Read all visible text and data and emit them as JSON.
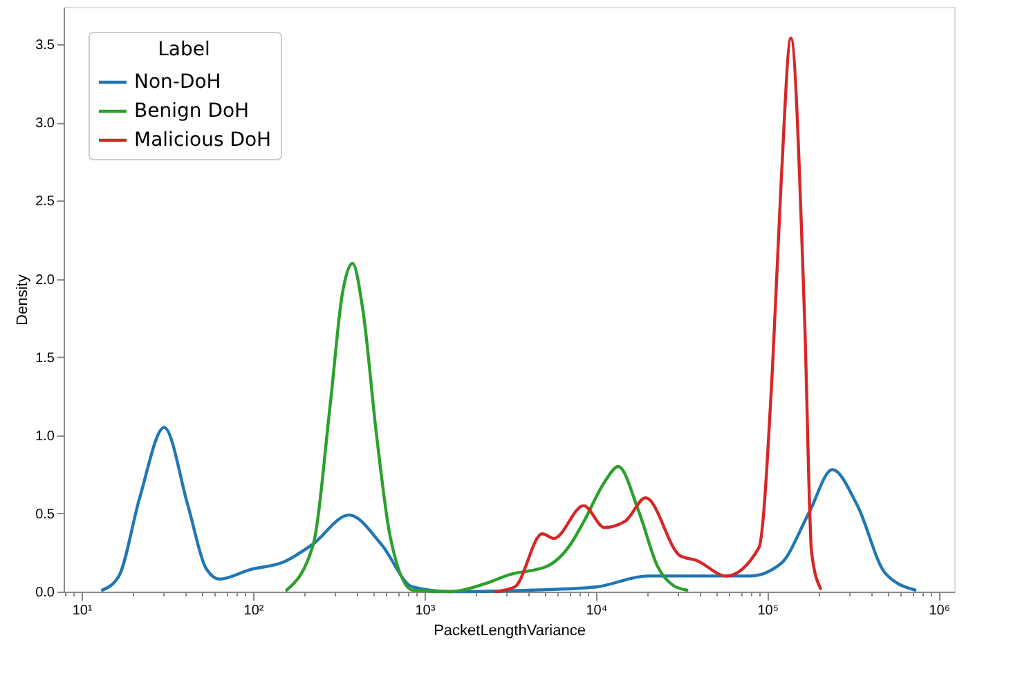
{
  "chart_data": {
    "type": "line",
    "xlabel": "PacketLengthVariance",
    "ylabel": "Density",
    "legend_title": "Label",
    "log": "x",
    "grid": false,
    "legend": "top left",
    "marker": "none",
    "line_style": "solid",
    "xlim": [
      7.85,
      1230000
    ],
    "ylim": [
      0,
      3.74
    ],
    "xticks": [
      {
        "value": 8,
        "label": null
      },
      {
        "value": 9,
        "label": null
      },
      {
        "value": 10,
        "label": "10¹"
      },
      {
        "value": 20,
        "label": null
      },
      {
        "value": 30,
        "label": null
      },
      {
        "value": 40,
        "label": null
      },
      {
        "value": 50,
        "label": null
      },
      {
        "value": 60,
        "label": null
      },
      {
        "value": 70,
        "label": null
      },
      {
        "value": 80,
        "label": null
      },
      {
        "value": 90,
        "label": null
      },
      {
        "value": 100,
        "label": "10²"
      },
      {
        "value": 200,
        "label": null
      },
      {
        "value": 300,
        "label": null
      },
      {
        "value": 400,
        "label": null
      },
      {
        "value": 500,
        "label": null
      },
      {
        "value": 600,
        "label": null
      },
      {
        "value": 700,
        "label": null
      },
      {
        "value": 800,
        "label": null
      },
      {
        "value": 900,
        "label": null
      },
      {
        "value": 1000,
        "label": "10³"
      },
      {
        "value": 2000,
        "label": null
      },
      {
        "value": 3000,
        "label": null
      },
      {
        "value": 4000,
        "label": null
      },
      {
        "value": 5000,
        "label": null
      },
      {
        "value": 6000,
        "label": null
      },
      {
        "value": 7000,
        "label": null
      },
      {
        "value": 8000,
        "label": null
      },
      {
        "value": 9000,
        "label": null
      },
      {
        "value": 10000,
        "label": "10⁴"
      },
      {
        "value": 20000,
        "label": null
      },
      {
        "value": 30000,
        "label": null
      },
      {
        "value": 40000,
        "label": null
      },
      {
        "value": 50000,
        "label": null
      },
      {
        "value": 60000,
        "label": null
      },
      {
        "value": 70000,
        "label": null
      },
      {
        "value": 80000,
        "label": null
      },
      {
        "value": 90000,
        "label": null
      },
      {
        "value": 100000,
        "label": "10⁵"
      },
      {
        "value": 200000,
        "label": null
      },
      {
        "value": 300000,
        "label": null
      },
      {
        "value": 400000,
        "label": null
      },
      {
        "value": 500000,
        "label": null
      },
      {
        "value": 600000,
        "label": null
      },
      {
        "value": 700000,
        "label": null
      },
      {
        "value": 800000,
        "label": null
      },
      {
        "value": 900000,
        "label": null
      },
      {
        "value": 1000000,
        "label": "10⁶"
      }
    ],
    "yticks": [
      {
        "value": 0,
        "label": "0.0"
      },
      {
        "value": 0.5,
        "label": "0.5"
      },
      {
        "value": 1,
        "label": "1.0"
      },
      {
        "value": 1.5,
        "label": "1.5"
      },
      {
        "value": 2,
        "label": "2.0"
      },
      {
        "value": 2.5,
        "label": "2.5"
      },
      {
        "value": 3,
        "label": "3.0"
      },
      {
        "value": 3.5,
        "label": "3.5"
      }
    ],
    "series": [
      {
        "name": "Non-DoH",
        "color": "#1f77b4",
        "x": [
          13.2,
          16.5,
          21.8,
          30.3,
          41.7,
          53.1,
          63.8,
          95.5,
          151,
          221,
          363,
          562,
          851,
          1410,
          4270,
          10000,
          20000,
          79400,
          120000,
          174000,
          239000,
          335000,
          485000,
          726000
        ],
        "values": [
          0.01,
          0.1,
          0.6,
          1.05,
          0.55,
          0.15,
          0.08,
          0.14,
          0.19,
          0.3,
          0.49,
          0.3,
          0.03,
          0.0,
          0.01,
          0.03,
          0.1,
          0.1,
          0.18,
          0.5,
          0.78,
          0.55,
          0.12,
          0.01
        ]
      },
      {
        "name": "Benign DoH",
        "color": "#2ca02c",
        "x": [
          157,
          224,
          282,
          331,
          380,
          437,
          525,
          631,
          851,
          1410,
          2240,
          3160,
          5130,
          7080,
          8510,
          11200,
          13500,
          17800,
          22900,
          28200,
          33900
        ],
        "values": [
          0.01,
          0.3,
          1.2,
          1.9,
          2.1,
          1.8,
          1.0,
          0.35,
          0.01,
          0.0,
          0.05,
          0.11,
          0.16,
          0.3,
          0.45,
          0.7,
          0.8,
          0.51,
          0.16,
          0.04,
          0.01
        ]
      },
      {
        "name": "Malicious DoH",
        "color": "#d62728",
        "x": [
          2600,
          3360,
          4860,
          5680,
          8470,
          11200,
          14800,
          19500,
          30900,
          38500,
          57500,
          89100,
          107000,
          120000,
          137000,
          165000,
          181000,
          204000
        ],
        "values": [
          0.0,
          0.03,
          0.37,
          0.34,
          0.55,
          0.41,
          0.45,
          0.6,
          0.23,
          0.2,
          0.1,
          0.28,
          1.43,
          2.6,
          3.54,
          1.72,
          0.25,
          0.02
        ]
      }
    ]
  }
}
